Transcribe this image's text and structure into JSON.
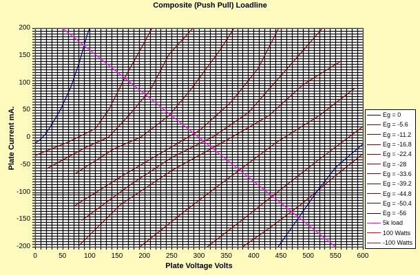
{
  "chart_data": {
    "type": "line",
    "title": "Composite (Push Pull) Loadline",
    "xlabel": "Plate Voltage  Volts",
    "ylabel": "Plate Current  mA.",
    "xlim": [
      0,
      600
    ],
    "ylim": [
      -200,
      200
    ],
    "x_ticks": [
      "0",
      "50",
      "100",
      "150",
      "200",
      "250",
      "300",
      "350",
      "400",
      "450",
      "500",
      "550",
      "600"
    ],
    "y_ticks": [
      "200",
      "150",
      "100",
      "50",
      "0",
      "-50",
      "-100",
      "-150",
      "-200"
    ],
    "grid": {
      "major_x_step": 10,
      "major_y_step": 5,
      "on": true
    },
    "legend_position": "right",
    "series": [
      {
        "name": "Eg = 0",
        "color": "#000080",
        "points": [
          [
            0,
            -10
          ],
          [
            8,
            -5
          ],
          [
            18,
            5
          ],
          [
            30,
            23
          ],
          [
            47,
            52
          ],
          [
            66,
            94
          ],
          [
            81,
            138
          ],
          [
            95,
            187
          ],
          [
            100,
            200
          ]
        ]
      },
      {
        "name": "Eg = -5.6",
        "color": "#800000",
        "points": [
          [
            0,
            -33
          ],
          [
            59,
            -9
          ],
          [
            110,
            16
          ],
          [
            135,
            51
          ],
          [
            165,
            111
          ],
          [
            194,
            163
          ],
          [
            214,
            200
          ]
        ]
      },
      {
        "name": "Eg = -11.2",
        "color": "#800000",
        "points": [
          [
            21,
            -57
          ],
          [
            93,
            -18
          ],
          [
            135,
            1
          ],
          [
            173,
            42
          ],
          [
            211,
            87
          ],
          [
            245,
            152
          ],
          [
            289,
            200
          ]
        ]
      },
      {
        "name": "Eg = -16.8",
        "color": "#800000",
        "points": [
          [
            72,
            -67
          ],
          [
            144,
            -21
          ],
          [
            194,
            1
          ],
          [
            244,
            39
          ],
          [
            286,
            89
          ],
          [
            340,
            162
          ],
          [
            364,
            200
          ]
        ]
      },
      {
        "name": "Eg = -22.4",
        "color": "#800000",
        "points": [
          [
            72,
            -125
          ],
          [
            163,
            -68
          ],
          [
            238,
            -24
          ],
          [
            301,
            13
          ],
          [
            358,
            64
          ],
          [
            408,
            126
          ],
          [
            446,
            200
          ]
        ]
      },
      {
        "name": "Eg = -28",
        "color": "#800000",
        "points": [
          [
            85,
            -152
          ],
          [
            175,
            -86
          ],
          [
            251,
            -36
          ],
          [
            327,
            2
          ],
          [
            391,
            46
          ],
          [
            441,
            103
          ],
          [
            500,
            170
          ],
          [
            526,
            200
          ]
        ]
      },
      {
        "name": "Eg = -33.6",
        "color": "#800000",
        "points": [
          [
            81,
            -197
          ],
          [
            156,
            -123
          ],
          [
            251,
            -60
          ],
          [
            352,
            -4
          ],
          [
            428,
            40
          ],
          [
            491,
            97
          ],
          [
            560,
            140
          ]
        ]
      },
      {
        "name": "Eg = -39.2",
        "color": "#800000",
        "points": [
          [
            192,
            -200
          ],
          [
            280,
            -130
          ],
          [
            360,
            -70
          ],
          [
            440,
            -10
          ],
          [
            520,
            40
          ],
          [
            585,
            90
          ]
        ]
      },
      {
        "name": "Eg = -44.8",
        "color": "#800000",
        "points": [
          [
            315,
            -200
          ],
          [
            380,
            -150
          ],
          [
            450,
            -95
          ],
          [
            520,
            -40
          ],
          [
            600,
            20
          ]
        ]
      },
      {
        "name": "Eg = -50.4",
        "color": "#800000",
        "points": [
          [
            380,
            -200
          ],
          [
            430,
            -165
          ],
          [
            490,
            -120
          ],
          [
            550,
            -70
          ],
          [
            600,
            -30
          ]
        ]
      },
      {
        "name": "Eg = -56",
        "color": "#000080",
        "points": [
          [
            445,
            -200
          ],
          [
            480,
            -150
          ],
          [
            515,
            -100
          ],
          [
            550,
            -55
          ],
          [
            600,
            -12
          ]
        ]
      },
      {
        "name": "5k load",
        "color": "#FF00FF",
        "points": [
          [
            50,
            200
          ],
          [
            100,
            160
          ],
          [
            150,
            120
          ],
          [
            200,
            80
          ],
          [
            250,
            40
          ],
          [
            300,
            0
          ],
          [
            350,
            -40
          ],
          [
            400,
            -80
          ],
          [
            450,
            -120
          ],
          [
            500,
            -160
          ],
          [
            550,
            -200
          ]
        ]
      },
      {
        "name": "100 Watts",
        "color": "#FF0000",
        "points": []
      },
      {
        "name": "-100 Watts",
        "color": "#FF0000",
        "points": []
      }
    ]
  },
  "legend": {
    "items": [
      {
        "label": "Eg = 0",
        "color": "#000080"
      },
      {
        "label": "Eg = -5.6",
        "color": "#800000"
      },
      {
        "label": "Eg = -11.2",
        "color": "#800000"
      },
      {
        "label": "Eg = -16.8",
        "color": "#800000"
      },
      {
        "label": "Eg = -22.4",
        "color": "#800000"
      },
      {
        "label": "Eg = -28",
        "color": "#800000"
      },
      {
        "label": "Eg = -33.6",
        "color": "#800000"
      },
      {
        "label": "Eg = -39.2",
        "color": "#800000"
      },
      {
        "label": "Eg = -44.8",
        "color": "#800000"
      },
      {
        "label": "Eg = -50.4",
        "color": "#800000"
      },
      {
        "label": "Eg = -56",
        "color": "#000080"
      },
      {
        "label": "5k load",
        "color": "#FF00FF"
      },
      {
        "label": "100 Watts",
        "color": "#FF0000"
      },
      {
        "label": "-100 Watts",
        "color": "#FF0000"
      }
    ]
  },
  "colors": {
    "background": "#FFFBBF",
    "plot_bg": "#FFFFFF",
    "grid": "#000000"
  }
}
